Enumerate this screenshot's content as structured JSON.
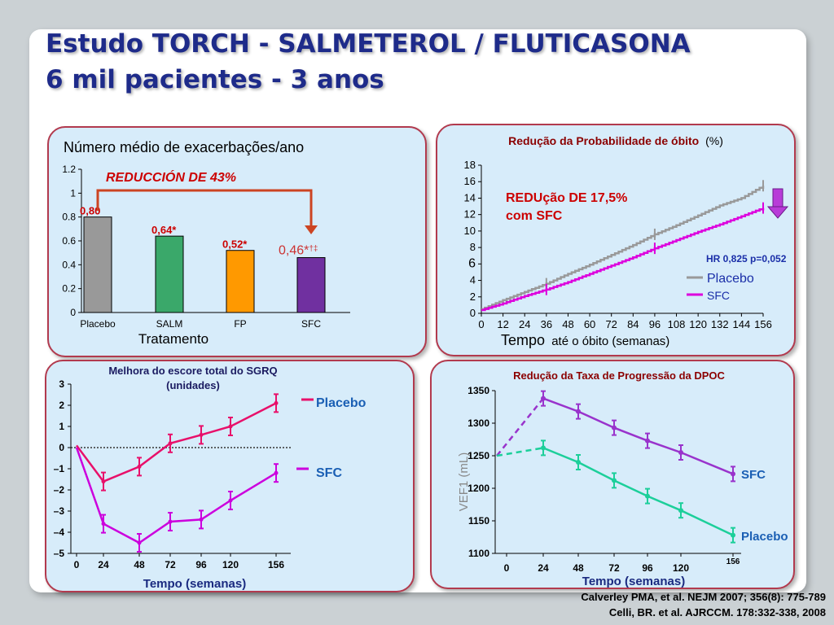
{
  "title": {
    "line1": "Estudo TORCH  - SALMETEROL / FLUTICASONA",
    "line2": "6 mil pacientes - 3 anos"
  },
  "references": [
    "Calverley PMA, et al. NEJM 2007; 356(8): 775-789",
    "Celli, BR. et al. AJRCCM. 178:332-338, 2008"
  ],
  "chart_data": [
    {
      "type": "bar",
      "title": "Número médio de exacerbações/ano",
      "xlabel": "Tratamento",
      "categories": [
        "Placebo",
        "SALM",
        "FP",
        "SFC"
      ],
      "values": [
        0.8,
        0.64,
        0.52,
        0.46
      ],
      "value_labels": [
        "0,80",
        "0,64*",
        "0,52*",
        "0,46*"
      ],
      "sfc_label_marks": "†‡",
      "annotation": "REDUCCIÓN DE 43%",
      "yticks": [
        "0",
        "0.2",
        "0.4",
        "0.6",
        "0.8",
        "1",
        "1.2"
      ],
      "ylim": [
        0,
        1.2
      ],
      "colors": [
        "#999999",
        "#3aa86a",
        "#ff9900",
        "#7030a0"
      ]
    },
    {
      "type": "line",
      "title": "Redução da Probabilidade de óbito",
      "title_unit": "(%)",
      "xlabel_big": "Tempo",
      "xlabel_rest": "até o óbito (semanas)",
      "xticks": [
        "0",
        "12",
        "24",
        "36",
        "48",
        "60",
        "72",
        "84",
        "96",
        "108",
        "120",
        "132",
        "144",
        "156"
      ],
      "yticks": [
        "0",
        "2",
        "4",
        "6",
        "8",
        "10",
        "12",
        "14",
        "16",
        "18"
      ],
      "ylim": [
        0,
        18
      ],
      "annotation_line1": "REDUção DE 17,5%",
      "annotation_line2": "com SFC",
      "hr_text": "HR 0,825 p=0,052",
      "series": [
        {
          "name": "Placebo",
          "color": "#999999",
          "x": [
            0,
            12,
            24,
            36,
            48,
            60,
            72,
            84,
            96,
            108,
            120,
            132,
            144,
            156
          ],
          "values": [
            0.5,
            1.6,
            2.6,
            3.6,
            4.8,
            5.9,
            7.1,
            8.3,
            9.6,
            10.7,
            11.9,
            13.1,
            14.0,
            15.5
          ]
        },
        {
          "name": "SFC",
          "color": "#dd00dd",
          "x": [
            0,
            12,
            24,
            36,
            48,
            60,
            72,
            84,
            96,
            108,
            120,
            132,
            144,
            156
          ],
          "values": [
            0.4,
            1.2,
            2.1,
            2.9,
            3.8,
            4.8,
            5.8,
            6.8,
            7.9,
            8.9,
            9.9,
            10.8,
            11.8,
            12.8
          ]
        }
      ]
    },
    {
      "type": "line",
      "title_line1": "Melhora do escore total do SGRQ",
      "title_line2": "(unidades)",
      "xlabel": "Tempo (semanas)",
      "xticks": [
        "0",
        "24",
        "48",
        "72",
        "96",
        "120",
        "156"
      ],
      "yticks": [
        "3",
        "2",
        "1",
        "0",
        "–1",
        "–2",
        "–3",
        "–4",
        "–5"
      ],
      "ylim": [
        -5,
        3
      ],
      "series": [
        {
          "name": "Placebo",
          "color": "#e8106a",
          "x": [
            0,
            24,
            48,
            72,
            96,
            120,
            156
          ],
          "values": [
            0.1,
            -1.6,
            -0.9,
            0.2,
            0.6,
            1.0,
            2.1
          ]
        },
        {
          "name": "SFC",
          "color": "#cc00dd",
          "x": [
            0,
            24,
            48,
            72,
            96,
            120,
            156
          ],
          "values": [
            0.0,
            -3.6,
            -4.5,
            -3.5,
            -3.4,
            -2.5,
            -1.2
          ]
        }
      ]
    },
    {
      "type": "line",
      "title": "Redução da Taxa de Progressão da DPOC",
      "ylabel": "VEF1 (mL)",
      "xlabel": "Tempo (semanas)",
      "xticks": [
        "0",
        "24",
        "48",
        "72",
        "96",
        "120",
        "156"
      ],
      "yticks": [
        "1350",
        "1300",
        "1250",
        "1200",
        "1150",
        "1100"
      ],
      "ylim": [
        1100,
        1350
      ],
      "series": [
        {
          "name": "SFC",
          "color": "#9933cc",
          "x": [
            24,
            48,
            72,
            96,
            120,
            156
          ],
          "values": [
            1338,
            1318,
            1293,
            1273,
            1255,
            1222
          ]
        },
        {
          "name": "Placebo",
          "color": "#1ccf9a",
          "x": [
            24,
            48,
            72,
            96,
            120,
            156
          ],
          "values": [
            1262,
            1240,
            1212,
            1188,
            1166,
            1128
          ]
        }
      ],
      "baseline": 1250
    }
  ]
}
